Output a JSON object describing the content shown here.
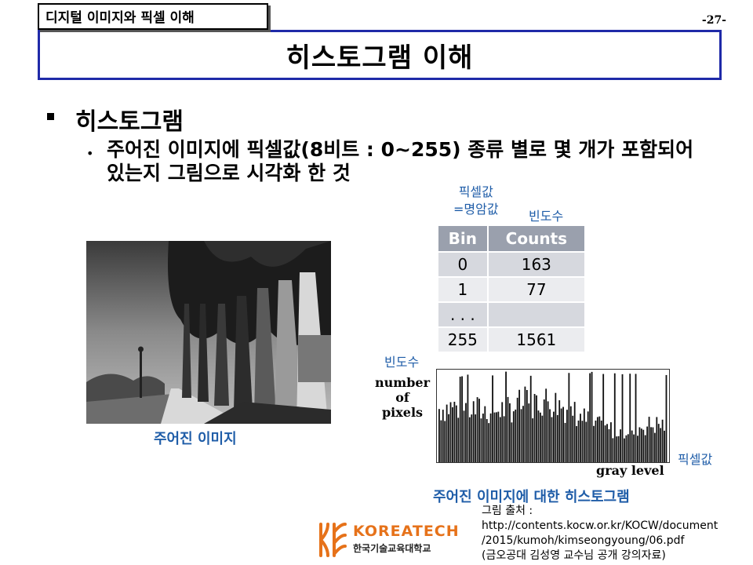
{
  "header": {
    "tag": "디지털 이미지와 픽셀 이해",
    "page_number": "-27-"
  },
  "title": "히스토그램 이해",
  "bullets": {
    "level1": "히스토그램",
    "level2_marker": "•",
    "level2": "주어진 이미지에 픽셀값(8비트 : 0~255) 종류 별로 몇 개가 포함되어 있는지 그림으로 시각화 한 것"
  },
  "photo": {
    "caption": "주어진 이미지"
  },
  "table": {
    "note_pixel_line1": "픽셀값",
    "note_pixel_line2": "=명암값",
    "note_frequency": "빈도수",
    "headers": [
      "Bin",
      "Counts"
    ],
    "rows": [
      [
        "0",
        "163"
      ],
      [
        "1",
        "77"
      ],
      [
        ". . .",
        ""
      ],
      [
        "255",
        "1561"
      ]
    ]
  },
  "histogram": {
    "note_frequency": "빈도수",
    "ylabel_line1": "number",
    "ylabel_line2": "of",
    "ylabel_line3": "pixels",
    "xlabel": "gray level",
    "note_pixel": "픽셀값",
    "caption": "주어진 이미지에 대한 히스토그램"
  },
  "logo": {
    "name": "KOREATECH",
    "subname": "한국기술교육대학교",
    "mark_color": "#e6721a"
  },
  "source": {
    "line1": "그림 출처 :",
    "line2": "http://contents.kocw.or.kr/KOCW/document",
    "line3": "/2015/kumoh/kimseongyoung/06.pdf",
    "line4": "(금오공대 김성영 교수님 공개 강의자료)"
  },
  "colors": {
    "title_border": "#1f2aa8",
    "caption_blue": "#1f5da8",
    "table_header": "#9aa0ad"
  }
}
